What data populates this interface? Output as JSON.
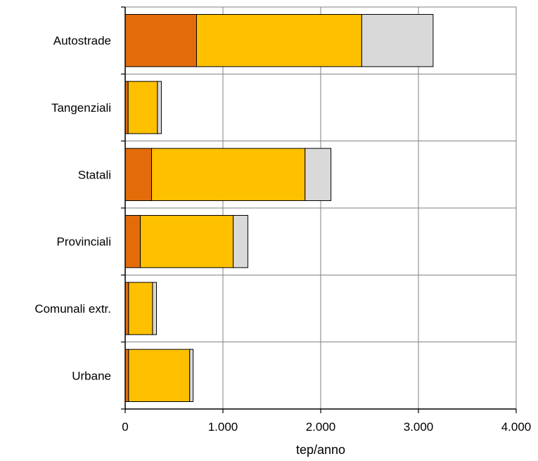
{
  "chart_data": {
    "type": "bar",
    "orientation": "horizontal",
    "stacked": true,
    "categories": [
      "Autostrade",
      "Tangenziali",
      "Statali",
      "Provinciali",
      "Comunali extr.",
      "Urbane"
    ],
    "series": [
      {
        "color": "#E36C0A",
        "values": [
          730,
          30,
          270,
          155,
          35,
          35
        ]
      },
      {
        "color": "#FFC000",
        "values": [
          1690,
          300,
          1570,
          950,
          245,
          625
        ]
      },
      {
        "color": "#D9D9D9",
        "values": [
          730,
          40,
          265,
          150,
          40,
          35
        ]
      }
    ],
    "xlabel": "tep/anno",
    "ylabel": "",
    "xlim": [
      0,
      4000
    ],
    "x_ticks": [
      0,
      1000,
      2000,
      3000,
      4000
    ],
    "x_tick_labels": [
      "0",
      "1.000",
      "2.000",
      "3.000",
      "4.000"
    ],
    "grid": true,
    "legend": "none"
  }
}
